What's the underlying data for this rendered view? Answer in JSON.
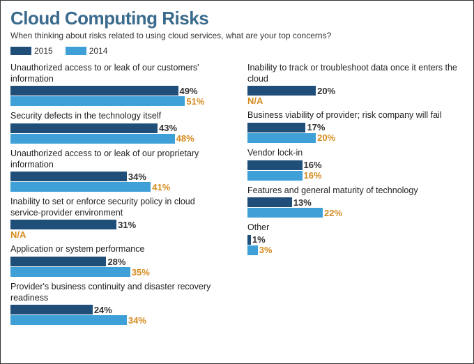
{
  "title": "Cloud Computing Risks",
  "subtitle": "When thinking about risks related to using cloud services, what are your top concerns?",
  "colors": {
    "series2015": "#1f4e79",
    "series2014": "#3fa0d8",
    "valueText": "#d58b1f",
    "naText": "#d58b1f",
    "valueText2015": "#333333"
  },
  "legend": [
    {
      "label": "2015",
      "color": "#1f4e79"
    },
    {
      "label": "2014",
      "color": "#3fa0d8"
    }
  ],
  "maxValue": 55,
  "leftItems": [
    {
      "label": "Unauthorized access to or leak of our customers' information",
      "v2015": 49,
      "v2014": 51,
      "na2014": false
    },
    {
      "label": "Security defects in the technology itself",
      "v2015": 43,
      "v2014": 48,
      "na2014": false
    },
    {
      "label": "Unauthorized access to or leak of our proprietary information",
      "v2015": 34,
      "v2014": 41,
      "na2014": false
    },
    {
      "label": "Inability to set or enforce security policy in cloud service-provider environment",
      "v2015": 31,
      "v2014": null,
      "na2014": true
    },
    {
      "label": "Application or system performance",
      "v2015": 28,
      "v2014": 35,
      "na2014": false
    },
    {
      "label": "Provider's business continuity and disaster recovery readiness",
      "v2015": 24,
      "v2014": 34,
      "na2014": false
    }
  ],
  "rightItems": [
    {
      "label": "Inability to track or troubleshoot data once it enters the cloud",
      "v2015": 20,
      "v2014": null,
      "na2014": true
    },
    {
      "label": "Business viability of provider; risk company will fail",
      "v2015": 17,
      "v2014": 20,
      "na2014": false
    },
    {
      "label": "Vendor lock-in",
      "v2015": 16,
      "v2014": 16,
      "na2014": false
    },
    {
      "label": "Features and general maturity of technology",
      "v2015": 13,
      "v2014": 22,
      "na2014": false
    },
    {
      "label": "Other",
      "v2015": 1,
      "v2014": 3,
      "na2014": false
    }
  ]
}
